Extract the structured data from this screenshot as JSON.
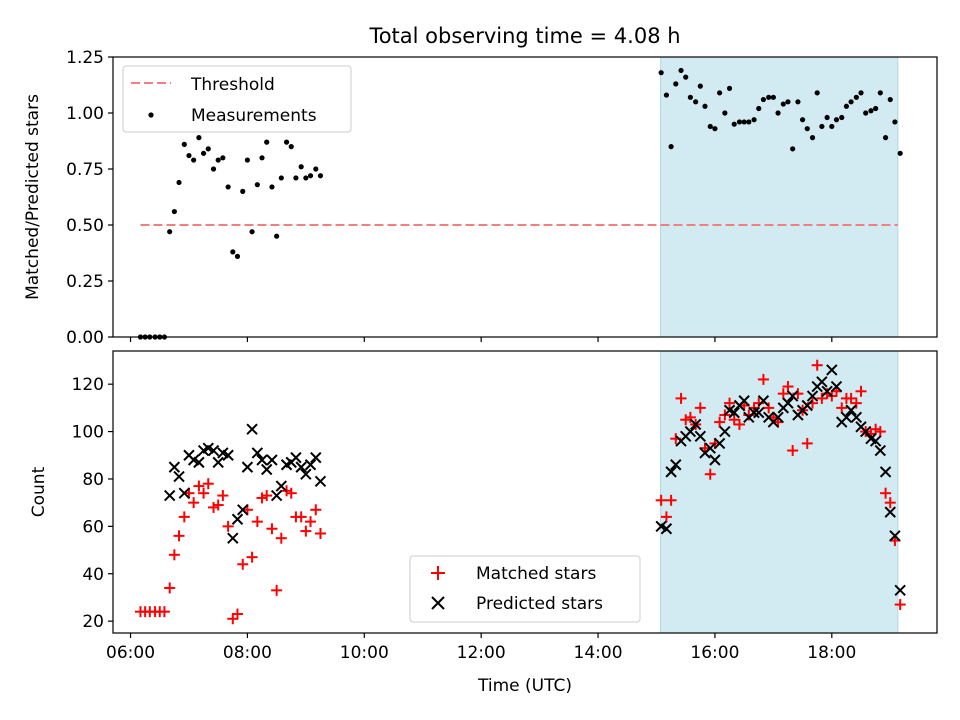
{
  "figure": {
    "title": "Total observing time = 4.08 h",
    "xlabel": "Time (UTC)",
    "x_ticks": [
      "06:00",
      "08:00",
      "10:00",
      "12:00",
      "14:00",
      "16:00",
      "18:00"
    ],
    "shaded_span": {
      "start": 15.07,
      "end": 19.13,
      "color": "#add8e6"
    }
  },
  "chart_data": [
    {
      "type": "scatter",
      "title": "Total observing time = 4.08 h",
      "xlabel": "",
      "ylabel": "Matched/Predicted stars",
      "xlim": [
        5.7,
        19.8
      ],
      "ylim": [
        0,
        1.25
      ],
      "y_ticks": [
        "0.00",
        "0.25",
        "0.50",
        "0.75",
        "1.00",
        "1.25"
      ],
      "legend": {
        "placement": "upper-left",
        "entries": [
          "Threshold",
          "Measurements"
        ]
      },
      "threshold": {
        "name": "Threshold",
        "y": 0.5,
        "x": [
          6.17,
          19.13
        ],
        "color": "#f08080"
      },
      "series": [
        {
          "name": "Measurements",
          "color": "#000000",
          "points": [
            [
              6.17,
              0.0
            ],
            [
              6.25,
              0.0
            ],
            [
              6.33,
              0.0
            ],
            [
              6.42,
              0.0
            ],
            [
              6.5,
              0.0
            ],
            [
              6.58,
              0.0
            ],
            [
              6.67,
              0.47
            ],
            [
              6.75,
              0.56
            ],
            [
              6.83,
              0.69
            ],
            [
              6.92,
              0.86
            ],
            [
              7.0,
              0.81
            ],
            [
              7.08,
              0.79
            ],
            [
              7.17,
              0.89
            ],
            [
              7.25,
              0.82
            ],
            [
              7.33,
              0.84
            ],
            [
              7.42,
              0.75
            ],
            [
              7.5,
              0.79
            ],
            [
              7.58,
              0.8
            ],
            [
              7.67,
              0.67
            ],
            [
              7.75,
              0.38
            ],
            [
              7.83,
              0.36
            ],
            [
              7.92,
              0.65
            ],
            [
              8.0,
              0.79
            ],
            [
              8.08,
              0.47
            ],
            [
              8.17,
              0.68
            ],
            [
              8.25,
              0.8
            ],
            [
              8.33,
              0.87
            ],
            [
              8.42,
              0.67
            ],
            [
              8.5,
              0.45
            ],
            [
              8.58,
              0.71
            ],
            [
              8.67,
              0.87
            ],
            [
              8.75,
              0.85
            ],
            [
              8.83,
              0.71
            ],
            [
              8.92,
              0.76
            ],
            [
              9.0,
              0.71
            ],
            [
              9.08,
              0.72
            ],
            [
              9.17,
              0.75
            ],
            [
              9.25,
              0.72
            ],
            [
              15.08,
              1.18
            ],
            [
              15.17,
              1.08
            ],
            [
              15.25,
              0.85
            ],
            [
              15.33,
              1.13
            ],
            [
              15.42,
              1.19
            ],
            [
              15.5,
              1.16
            ],
            [
              15.58,
              1.07
            ],
            [
              15.67,
              1.05
            ],
            [
              15.75,
              1.12
            ],
            [
              15.83,
              1.03
            ],
            [
              15.92,
              0.94
            ],
            [
              16.0,
              0.93
            ],
            [
              16.08,
              1.09
            ],
            [
              16.17,
              1.0
            ],
            [
              16.25,
              1.11
            ],
            [
              16.33,
              0.95
            ],
            [
              16.42,
              0.96
            ],
            [
              16.5,
              0.96
            ],
            [
              16.58,
              0.96
            ],
            [
              16.67,
              0.97
            ],
            [
              16.75,
              1.02
            ],
            [
              16.83,
              1.06
            ],
            [
              16.92,
              1.07
            ],
            [
              17.0,
              1.07
            ],
            [
              17.08,
              1.0
            ],
            [
              17.17,
              1.04
            ],
            [
              17.25,
              1.05
            ],
            [
              17.33,
              0.84
            ],
            [
              17.42,
              1.05
            ],
            [
              17.5,
              0.97
            ],
            [
              17.58,
              0.93
            ],
            [
              17.67,
              0.89
            ],
            [
              17.75,
              1.09
            ],
            [
              17.83,
              0.94
            ],
            [
              17.92,
              0.98
            ],
            [
              18.0,
              0.94
            ],
            [
              18.08,
              0.97
            ],
            [
              18.17,
              0.98
            ],
            [
              18.25,
              1.03
            ],
            [
              18.33,
              1.05
            ],
            [
              18.42,
              1.07
            ],
            [
              18.5,
              1.09
            ],
            [
              18.58,
              1.0
            ],
            [
              18.67,
              1.01
            ],
            [
              18.75,
              1.02
            ],
            [
              18.83,
              1.09
            ],
            [
              18.92,
              0.89
            ],
            [
              19.0,
              1.06
            ],
            [
              19.08,
              0.96
            ],
            [
              19.17,
              0.82
            ]
          ]
        }
      ]
    },
    {
      "type": "scatter",
      "title": "",
      "xlabel": "Time (UTC)",
      "ylabel": "Count",
      "xlim": [
        5.7,
        19.8
      ],
      "ylim": [
        15,
        134
      ],
      "y_ticks": [
        "20",
        "40",
        "60",
        "80",
        "100",
        "120"
      ],
      "legend": {
        "placement": "lower-center",
        "entries": [
          "Matched stars",
          "Predicted stars"
        ]
      },
      "series": [
        {
          "name": "Matched stars",
          "marker": "plus",
          "color": "#ff0000",
          "points": [
            [
              6.17,
              24
            ],
            [
              6.25,
              24
            ],
            [
              6.33,
              24
            ],
            [
              6.42,
              24
            ],
            [
              6.5,
              24
            ],
            [
              6.58,
              24
            ],
            [
              6.67,
              34
            ],
            [
              6.75,
              48
            ],
            [
              6.83,
              56
            ],
            [
              6.92,
              64
            ],
            [
              7.0,
              74
            ],
            [
              7.08,
              70
            ],
            [
              7.17,
              77
            ],
            [
              7.25,
              74
            ],
            [
              7.33,
              78
            ],
            [
              7.42,
              68
            ],
            [
              7.5,
              69
            ],
            [
              7.58,
              73
            ],
            [
              7.67,
              60
            ],
            [
              7.75,
              21
            ],
            [
              7.83,
              23
            ],
            [
              7.92,
              44
            ],
            [
              8.0,
              67
            ],
            [
              8.08,
              47
            ],
            [
              8.17,
              62
            ],
            [
              8.25,
              72
            ],
            [
              8.33,
              73
            ],
            [
              8.42,
              59
            ],
            [
              8.5,
              33
            ],
            [
              8.58,
              55
            ],
            [
              8.67,
              75
            ],
            [
              8.75,
              74
            ],
            [
              8.83,
              64
            ],
            [
              8.92,
              64
            ],
            [
              9.0,
              58
            ],
            [
              9.08,
              62
            ],
            [
              9.17,
              67
            ],
            [
              9.25,
              57
            ],
            [
              15.08,
              71
            ],
            [
              15.17,
              64
            ],
            [
              15.25,
              71
            ],
            [
              15.33,
              97
            ],
            [
              15.42,
              114
            ],
            [
              15.5,
              105
            ],
            [
              15.58,
              106
            ],
            [
              15.67,
              103
            ],
            [
              15.75,
              110
            ],
            [
              15.83,
              93
            ],
            [
              15.92,
              82
            ],
            [
              16.0,
              95
            ],
            [
              16.08,
              104
            ],
            [
              16.17,
              107
            ],
            [
              16.25,
              112
            ],
            [
              16.33,
              105
            ],
            [
              16.42,
              103
            ],
            [
              16.5,
              111
            ],
            [
              16.58,
              107
            ],
            [
              16.67,
              110
            ],
            [
              16.75,
              112
            ],
            [
              16.83,
              122
            ],
            [
              16.92,
              110
            ],
            [
              17.0,
              106
            ],
            [
              17.08,
              104
            ],
            [
              17.17,
              116
            ],
            [
              17.25,
              119
            ],
            [
              17.33,
              92
            ],
            [
              17.42,
              116
            ],
            [
              17.5,
              109
            ],
            [
              17.58,
              95
            ],
            [
              17.67,
              112
            ],
            [
              17.75,
              128
            ],
            [
              17.83,
              114
            ],
            [
              17.92,
              116
            ],
            [
              18.0,
              115
            ],
            [
              18.08,
              117
            ],
            [
              18.17,
              110
            ],
            [
              18.25,
              114
            ],
            [
              18.33,
              114
            ],
            [
              18.42,
              112
            ],
            [
              18.5,
              117
            ],
            [
              18.58,
              100
            ],
            [
              18.67,
              99
            ],
            [
              18.75,
              101
            ],
            [
              18.83,
              100
            ],
            [
              18.92,
              74
            ],
            [
              19.0,
              70
            ],
            [
              19.08,
              54
            ],
            [
              19.17,
              27
            ]
          ]
        },
        {
          "name": "Predicted stars",
          "marker": "x",
          "color": "#000000",
          "points": [
            [
              6.67,
              73
            ],
            [
              6.75,
              85
            ],
            [
              6.83,
              81
            ],
            [
              6.92,
              74
            ],
            [
              7.0,
              90
            ],
            [
              7.08,
              88
            ],
            [
              7.17,
              87
            ],
            [
              7.25,
              92
            ],
            [
              7.33,
              93
            ],
            [
              7.42,
              92
            ],
            [
              7.5,
              87
            ],
            [
              7.58,
              91
            ],
            [
              7.67,
              90
            ],
            [
              7.75,
              55
            ],
            [
              7.83,
              63
            ],
            [
              7.92,
              67
            ],
            [
              8.0,
              85
            ],
            [
              8.08,
              101
            ],
            [
              8.17,
              91
            ],
            [
              8.25,
              88
            ],
            [
              8.33,
              84
            ],
            [
              8.42,
              88
            ],
            [
              8.5,
              73
            ],
            [
              8.58,
              77
            ],
            [
              8.67,
              86
            ],
            [
              8.75,
              87
            ],
            [
              8.83,
              89
            ],
            [
              8.92,
              85
            ],
            [
              9.0,
              82
            ],
            [
              9.08,
              86
            ],
            [
              9.17,
              89
            ],
            [
              9.25,
              79
            ],
            [
              15.08,
              60
            ],
            [
              15.17,
              59
            ],
            [
              15.25,
              83
            ],
            [
              15.33,
              86
            ],
            [
              15.42,
              96
            ],
            [
              15.5,
              98
            ],
            [
              15.58,
              100
            ],
            [
              15.67,
              103
            ],
            [
              15.75,
              98
            ],
            [
              15.83,
              91
            ],
            [
              15.92,
              93
            ],
            [
              16.0,
              88
            ],
            [
              16.08,
              95
            ],
            [
              16.17,
              100
            ],
            [
              16.25,
              109
            ],
            [
              16.33,
              108
            ],
            [
              16.42,
              111
            ],
            [
              16.5,
              113
            ],
            [
              16.58,
              106
            ],
            [
              16.67,
              108
            ],
            [
              16.75,
              108
            ],
            [
              16.83,
              113
            ],
            [
              16.92,
              106
            ],
            [
              17.0,
              104
            ],
            [
              17.08,
              106
            ],
            [
              17.17,
              110
            ],
            [
              17.25,
              112
            ],
            [
              17.33,
              115
            ],
            [
              17.42,
              107
            ],
            [
              17.5,
              109
            ],
            [
              17.58,
              111
            ],
            [
              17.67,
              115
            ],
            [
              17.75,
              119
            ],
            [
              17.83,
              121
            ],
            [
              17.92,
              117
            ],
            [
              18.0,
              126
            ],
            [
              18.08,
              119
            ],
            [
              18.17,
              104
            ],
            [
              18.25,
              106
            ],
            [
              18.33,
              109
            ],
            [
              18.42,
              106
            ],
            [
              18.5,
              102
            ],
            [
              18.58,
              100
            ],
            [
              18.67,
              97
            ],
            [
              18.75,
              96
            ],
            [
              18.83,
              92
            ],
            [
              18.92,
              83
            ],
            [
              19.0,
              66
            ],
            [
              19.08,
              56
            ],
            [
              19.17,
              33
            ]
          ]
        }
      ]
    }
  ]
}
